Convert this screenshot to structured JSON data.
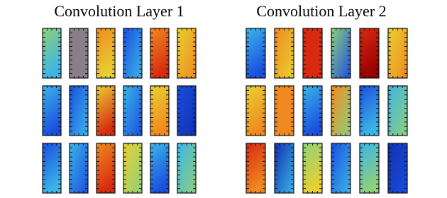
{
  "panels": [
    {
      "title": "Convolution Layer 1"
    },
    {
      "title": "Convolution Layer 2"
    }
  ]
}
